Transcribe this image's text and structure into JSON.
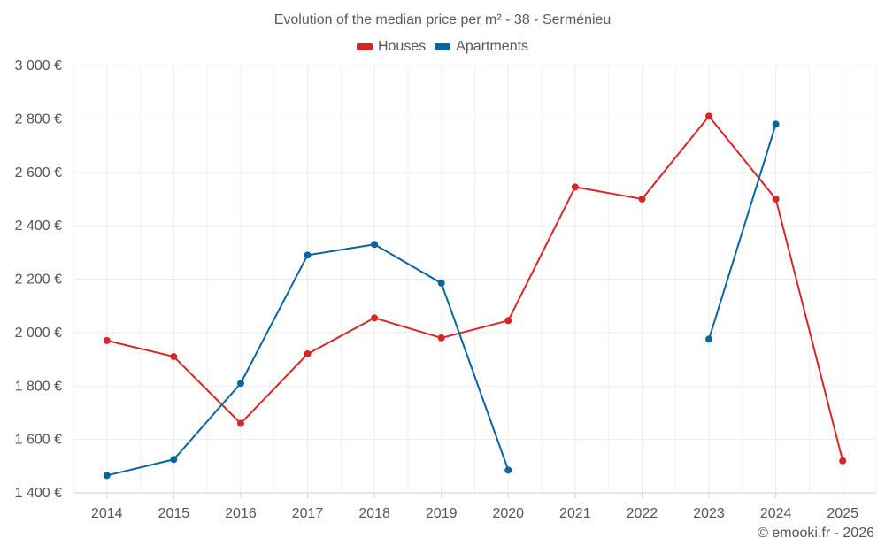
{
  "chart_data": {
    "type": "line",
    "title": "Evolution of the median price per m² - 38 - Serménieu",
    "categories": [
      "2014",
      "2015",
      "2016",
      "2017",
      "2018",
      "2019",
      "2020",
      "2021",
      "2022",
      "2023",
      "2024",
      "2025"
    ],
    "series": [
      {
        "name": "Houses",
        "color": "#d62728",
        "values": [
          1970,
          1910,
          1660,
          1920,
          2055,
          1980,
          2045,
          2545,
          2500,
          2810,
          2500,
          1520
        ]
      },
      {
        "name": "Apartments",
        "color": "#0a64a0",
        "values": [
          1465,
          1525,
          1810,
          2290,
          2330,
          2185,
          1485,
          null,
          null,
          1975,
          2780,
          null
        ]
      }
    ],
    "ylim": [
      1400,
      3000
    ],
    "yticks": [
      1400,
      1600,
      1800,
      2000,
      2200,
      2400,
      2600,
      2800,
      3000
    ],
    "ytick_labels": [
      "1 400 €",
      "1 600 €",
      "1 800 €",
      "2 000 €",
      "2 200 €",
      "2 400 €",
      "2 600 €",
      "2 800 €",
      "3 000 €"
    ],
    "xlabel": "",
    "ylabel": "",
    "grid": true,
    "legend_position": "top-center"
  },
  "credit": "© emooki.fr - 2026"
}
